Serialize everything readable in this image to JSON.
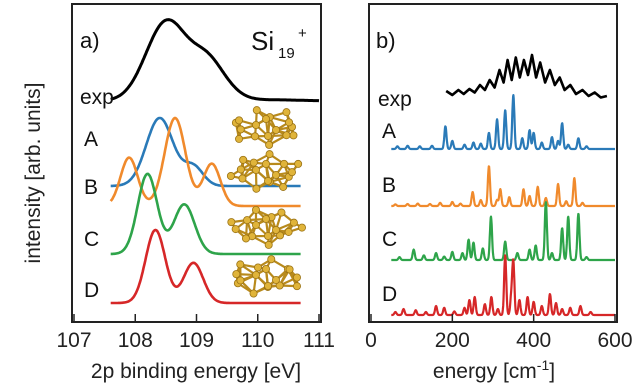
{
  "figure": {
    "ylabel": "intensity [arb. units]",
    "colors": {
      "exp": "#000000",
      "A": "#2a7ab8",
      "B": "#f08a2c",
      "C": "#2ea44a",
      "D": "#d62728",
      "cluster": "#e0b43a"
    }
  },
  "chart_data": [
    {
      "type": "line",
      "panel": "a)",
      "annotation": {
        "formula": "Si",
        "subscript": "19",
        "superscript": "+"
      },
      "xlabel": "2p binding energy [eV]",
      "xlim": [
        107,
        111
      ],
      "xticks": [
        "107",
        "108",
        "109",
        "110",
        "111"
      ],
      "series": [
        {
          "name": "exp",
          "x_range": [
            107.6,
            111.0
          ],
          "peaks": [
            [
              108.35,
              0.45,
              0.3
            ],
            [
              108.62,
              0.65,
              0.3
            ],
            [
              109.15,
              0.42,
              0.25
            ],
            [
              109.45,
              0.12,
              0.25
            ],
            [
              110.2,
              0.015,
              0.5
            ]
          ],
          "baseline": 0.0
        },
        {
          "name": "A",
          "x_range": [
            107.6,
            110.7
          ],
          "peaks": [
            [
              108.4,
              1.0,
              0.22
            ],
            [
              108.95,
              0.28,
              0.16
            ]
          ]
        },
        {
          "name": "B",
          "x_range": [
            107.6,
            110.7
          ],
          "peaks": [
            [
              107.9,
              0.55,
              0.14
            ],
            [
              108.65,
              1.0,
              0.17
            ],
            [
              109.25,
              0.48,
              0.14
            ]
          ]
        },
        {
          "name": "C",
          "x_range": [
            107.6,
            110.7
          ],
          "peaks": [
            [
              108.2,
              1.0,
              0.16
            ],
            [
              108.8,
              0.62,
              0.17
            ]
          ]
        },
        {
          "name": "D",
          "x_range": [
            107.6,
            110.7
          ],
          "peaks": [
            [
              108.33,
              1.0,
              0.16
            ],
            [
              108.95,
              0.55,
              0.16
            ]
          ]
        }
      ]
    },
    {
      "type": "line",
      "panel": "b)",
      "xlabel": "energy [cm",
      "xlabel_sup": "-1",
      "xlabel_end": "]",
      "xlim": [
        0,
        600
      ],
      "xticks": [
        "0",
        "200",
        "400",
        "600"
      ],
      "series": [
        {
          "name": "exp",
          "x_range": [
            185,
            580
          ],
          "values": [
            [
              185,
              0.18
            ],
            [
              200,
              0.1
            ],
            [
              215,
              0.2
            ],
            [
              228,
              0.12
            ],
            [
              242,
              0.22
            ],
            [
              255,
              0.15
            ],
            [
              268,
              0.3
            ],
            [
              280,
              0.2
            ],
            [
              292,
              0.4
            ],
            [
              304,
              0.25
            ],
            [
              316,
              0.6
            ],
            [
              326,
              0.35
            ],
            [
              336,
              0.8
            ],
            [
              346,
              0.4
            ],
            [
              356,
              0.85
            ],
            [
              366,
              0.45
            ],
            [
              376,
              0.8
            ],
            [
              386,
              0.5
            ],
            [
              396,
              0.9
            ],
            [
              406,
              0.45
            ],
            [
              416,
              0.75
            ],
            [
              428,
              0.35
            ],
            [
              440,
              0.6
            ],
            [
              452,
              0.3
            ],
            [
              464,
              0.45
            ],
            [
              476,
              0.2
            ],
            [
              490,
              0.3
            ],
            [
              504,
              0.12
            ],
            [
              520,
              0.2
            ],
            [
              535,
              0.08
            ],
            [
              550,
              0.15
            ],
            [
              565,
              0.05
            ],
            [
              580,
              0.08
            ]
          ]
        },
        {
          "name": "A",
          "x_range": [
            50,
            600
          ],
          "sticks": [
            [
              65,
              0.05
            ],
            [
              90,
              0.06
            ],
            [
              120,
              0.05
            ],
            [
              150,
              0.06
            ],
            [
              183,
              0.42
            ],
            [
              200,
              0.15
            ],
            [
              230,
              0.08
            ],
            [
              252,
              0.12
            ],
            [
              270,
              0.1
            ],
            [
              290,
              0.3
            ],
            [
              310,
              0.55
            ],
            [
              330,
              0.72
            ],
            [
              350,
              1.0
            ],
            [
              372,
              0.2
            ],
            [
              390,
              0.35
            ],
            [
              400,
              0.3
            ],
            [
              420,
              0.12
            ],
            [
              445,
              0.22
            ],
            [
              460,
              0.15
            ],
            [
              470,
              0.48
            ],
            [
              485,
              0.08
            ],
            [
              510,
              0.2
            ],
            [
              530,
              0.05
            ]
          ]
        },
        {
          "name": "B",
          "x_range": [
            50,
            600
          ],
          "sticks": [
            [
              60,
              0.04
            ],
            [
              90,
              0.05
            ],
            [
              115,
              0.06
            ],
            [
              145,
              0.05
            ],
            [
              170,
              0.08
            ],
            [
              200,
              0.1
            ],
            [
              220,
              0.06
            ],
            [
              250,
              0.35
            ],
            [
              270,
              0.15
            ],
            [
              290,
              1.0
            ],
            [
              310,
              0.15
            ],
            [
              318,
              0.42
            ],
            [
              340,
              0.22
            ],
            [
              375,
              0.42
            ],
            [
              390,
              0.25
            ],
            [
              410,
              0.48
            ],
            [
              430,
              0.2
            ],
            [
              460,
              0.55
            ],
            [
              480,
              0.12
            ],
            [
              500,
              0.7
            ],
            [
              520,
              0.08
            ]
          ]
        },
        {
          "name": "C",
          "x_range": [
            50,
            600
          ],
          "sticks": [
            [
              70,
              0.05
            ],
            [
              105,
              0.18
            ],
            [
              130,
              0.08
            ],
            [
              160,
              0.12
            ],
            [
              180,
              0.06
            ],
            [
              200,
              0.14
            ],
            [
              225,
              0.12
            ],
            [
              240,
              0.35
            ],
            [
              252,
              0.3
            ],
            [
              275,
              0.2
            ],
            [
              295,
              0.75
            ],
            [
              330,
              0.32
            ],
            [
              360,
              0.12
            ],
            [
              390,
              0.18
            ],
            [
              405,
              0.25
            ],
            [
              430,
              1.0
            ],
            [
              445,
              0.12
            ],
            [
              470,
              0.55
            ],
            [
              485,
              0.75
            ],
            [
              510,
              0.8
            ],
            [
              530,
              0.05
            ]
          ]
        },
        {
          "name": "D",
          "x_range": [
            50,
            600
          ],
          "sticks": [
            [
              60,
              0.05
            ],
            [
              80,
              0.1
            ],
            [
              110,
              0.08
            ],
            [
              135,
              0.05
            ],
            [
              160,
              0.15
            ],
            [
              180,
              0.12
            ],
            [
              205,
              0.06
            ],
            [
              230,
              0.12
            ],
            [
              242,
              0.25
            ],
            [
              255,
              0.3
            ],
            [
              280,
              0.18
            ],
            [
              296,
              0.3
            ],
            [
              312,
              0.1
            ],
            [
              330,
              1.0
            ],
            [
              345,
              0.3
            ],
            [
              350,
              0.88
            ],
            [
              365,
              0.25
            ],
            [
              385,
              0.3
            ],
            [
              400,
              0.22
            ],
            [
              420,
              0.15
            ],
            [
              440,
              0.35
            ],
            [
              455,
              0.2
            ],
            [
              470,
              0.1
            ],
            [
              490,
              0.12
            ],
            [
              515,
              0.15
            ],
            [
              540,
              0.05
            ]
          ]
        }
      ]
    }
  ]
}
